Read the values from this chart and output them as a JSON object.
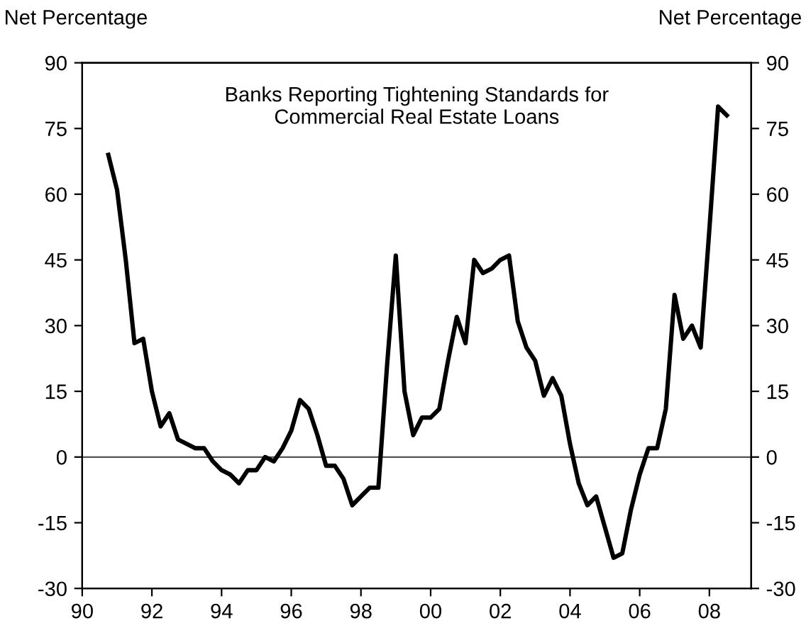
{
  "chart_data": {
    "type": "line",
    "title": "Banks Reporting Tightening Standards for\nCommercial Real Estate Loans",
    "ylabel": "Net Percentage",
    "y2label": "Net Percentage",
    "x": [
      1990.75,
      1991.0,
      1991.25,
      1991.5,
      1991.75,
      1992.0,
      1992.25,
      1992.5,
      1992.75,
      1993.0,
      1993.25,
      1993.5,
      1993.75,
      1994.0,
      1994.25,
      1994.5,
      1994.75,
      1995.0,
      1995.25,
      1995.5,
      1995.75,
      1996.0,
      1996.25,
      1996.5,
      1996.75,
      1997.0,
      1997.25,
      1997.5,
      1997.75,
      1998.0,
      1998.25,
      1998.5,
      1998.75,
      1999.0,
      1999.25,
      1999.5,
      1999.75,
      2000.0,
      2000.25,
      2000.5,
      2000.75,
      2001.0,
      2001.25,
      2001.5,
      2001.75,
      2002.0,
      2002.25,
      2002.5,
      2002.75,
      2003.0,
      2003.25,
      2003.5,
      2003.75,
      2004.0,
      2004.25,
      2004.5,
      2004.75,
      2005.0,
      2005.25,
      2005.5,
      2005.75,
      2006.0,
      2006.25,
      2006.5,
      2006.75,
      2007.0,
      2007.25,
      2007.5,
      2007.75,
      2008.0,
      2008.25,
      2008.5
    ],
    "series": [
      {
        "color": "#000000",
        "values": [
          69,
          61,
          45,
          26,
          27,
          15,
          7,
          10,
          4,
          3,
          2,
          2,
          -1,
          -3,
          -4,
          -6,
          -3,
          -3,
          0,
          -1,
          2,
          6,
          13,
          11,
          5,
          -2,
          -2,
          -5,
          -11,
          -9,
          -7,
          -7,
          21,
          46,
          15,
          5,
          9,
          9,
          11,
          22,
          32,
          26,
          45,
          42,
          43,
          45,
          46,
          31,
          25,
          22,
          14,
          18,
          14,
          3,
          -6,
          -11,
          -9,
          -16,
          -23,
          -22,
          -12,
          -4,
          2,
          2,
          11,
          37,
          27,
          30,
          25,
          52,
          80,
          78
        ]
      }
    ],
    "xlim": [
      1990,
      2009.2
    ],
    "xticks": [
      {
        "value": 1990,
        "label": "90"
      },
      {
        "value": 1992,
        "label": "92"
      },
      {
        "value": 1994,
        "label": "94"
      },
      {
        "value": 1996,
        "label": "96"
      },
      {
        "value": 1998,
        "label": "98"
      },
      {
        "value": 2000,
        "label": "00"
      },
      {
        "value": 2002,
        "label": "02"
      },
      {
        "value": 2004,
        "label": "04"
      },
      {
        "value": 2006,
        "label": "06"
      },
      {
        "value": 2008,
        "label": "08"
      }
    ],
    "ylim": [
      -30,
      90
    ],
    "yticks": [
      -30,
      -15,
      0,
      15,
      30,
      45,
      60,
      75,
      90
    ],
    "y2lim": [
      -30,
      90
    ],
    "y2ticks": [
      -30,
      -15,
      0,
      15,
      30,
      45,
      60,
      75,
      90
    ],
    "ref_lines": [
      {
        "axis": "y",
        "value": 0,
        "color": "#555555"
      }
    ],
    "grid": false,
    "legend": false,
    "marker": "none",
    "line_style": "solid"
  }
}
